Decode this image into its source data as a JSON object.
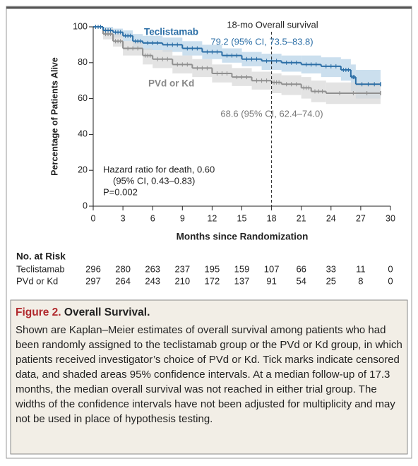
{
  "chart_data": {
    "type": "km",
    "xlabel": "Months since Randomization",
    "ylabel": "Percentage of Patients Alive",
    "xlim": [
      0,
      30
    ],
    "xticks": [
      0,
      3,
      6,
      9,
      12,
      15,
      18,
      21,
      24,
      27,
      30
    ],
    "ylim": [
      0,
      100
    ],
    "yticks": [
      0,
      20,
      40,
      60,
      80,
      100
    ],
    "vline": 18,
    "series": [
      {
        "name": "Teclistamab",
        "color": "#2b6ea6",
        "band_color": "#b9d4e8",
        "x": [
          0,
          1,
          2,
          3,
          4,
          5,
          7,
          9,
          11,
          13,
          15,
          17,
          19,
          21,
          23,
          25,
          26,
          26.5,
          29
        ],
        "values": [
          100,
          98,
          97,
          95,
          92,
          91,
          90,
          88,
          86,
          84,
          82,
          81,
          80,
          79,
          78,
          76,
          72,
          68,
          68
        ],
        "ci_lower": [
          100,
          96,
          94,
          92,
          88,
          87,
          86,
          84,
          82,
          80,
          78,
          76,
          75,
          74,
          72,
          70,
          64,
          60,
          60
        ],
        "ci_upper": [
          100,
          100,
          99,
          98,
          96,
          95,
          94,
          92,
          90,
          88,
          86,
          85,
          84,
          84,
          83,
          82,
          79,
          76,
          76
        ]
      },
      {
        "name": "PVd or Kd",
        "color": "#8f8f8f",
        "band_color": "#d9d9d9",
        "x": [
          0,
          1,
          2,
          3,
          5,
          6,
          8,
          10,
          12,
          14,
          16,
          18,
          19,
          21,
          22,
          23.5,
          29
        ],
        "values": [
          100,
          96,
          92,
          88,
          84,
          82,
          79,
          77,
          74,
          72,
          70,
          69,
          68,
          66,
          64,
          63,
          63
        ],
        "ci_lower": [
          100,
          93,
          89,
          84,
          79,
          77,
          74,
          72,
          69,
          67,
          65,
          63,
          62,
          60,
          58,
          57,
          57
        ],
        "ci_upper": [
          100,
          99,
          96,
          92,
          88,
          87,
          84,
          82,
          79,
          77,
          75,
          74,
          73,
          72,
          70,
          69,
          69
        ]
      }
    ],
    "annotations": {
      "vline_label": "18-mo Overall survival",
      "tec_estimate": "79.2 (95% CI, 73.5–83.8)",
      "pvd_estimate": "68.6 (95% CI, 62.4–74.0)",
      "hazard": [
        "Hazard ratio for death, 0.60",
        "(95% CI, 0.43–0.83)",
        "P=0.002"
      ]
    },
    "risk_table": {
      "title": "No. at Risk",
      "rows": [
        {
          "name": "Teclistamab",
          "values": [
            "296",
            "280",
            "263",
            "237",
            "195",
            "159",
            "107",
            "66",
            "33",
            "11",
            "0"
          ]
        },
        {
          "name": "PVd or Kd",
          "values": [
            "297",
            "264",
            "243",
            "210",
            "172",
            "137",
            "91",
            "54",
            "25",
            "8",
            "0"
          ]
        }
      ]
    }
  },
  "caption": {
    "figure": "Figure 2.",
    "title": "Overall Survival.",
    "text": "Shown are Kaplan–Meier estimates of overall survival among patients who had been randomly assigned to the teclistamab group or the PVd or Kd group, in which patients received investigator’s choice of PVd or Kd. Tick marks indicate censored data, and shaded areas 95% confidence intervals. At a median follow-up of 17.3 months, the median overall survival was not reached in either trial group. The widths of the confidence intervals have not been adjusted for multiplicity and may not be used in place of hypothesis testing."
  }
}
